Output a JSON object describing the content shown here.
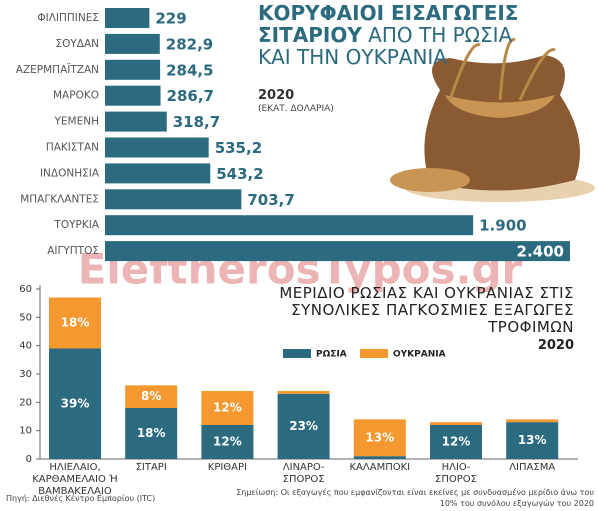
{
  "watermark": "EleftherosTypos.gr",
  "source": "Πηγή: Διεθνές Κέντρο Εμπορίου (ITC)",
  "note": "Σημείωση: Οι εξαγωγές που εμφανίζονται είναι εκείνες με συνδυασμένο μερίδιο άνω του 10% του συνόλου εξαγωγών του 2020",
  "chart_data": [
    {
      "type": "bar",
      "orientation": "horizontal",
      "title": [
        "ΚΟΡΥΦΑΙΟΙ ΕΙΣΑΓΩΓΕΙΣ ΣΙΤΑΡΙΟΥ",
        "ΑΠΟ ΤΗ ΡΩΣΙΑ ΚΑΙ ΤΗΝ ΟΥΚΡΑΝΙΑ"
      ],
      "subtitle": "2020",
      "unit": "(ΕΚΑΤ. ΔΟΛΑΡΙΑ)",
      "categories": [
        "ΦΙΛΙΠΠΙΝΕΣ",
        "ΣΟΥΔΑΝ",
        "ΑΖΕΡΜΠΑΪΤΖΑΝ",
        "ΜΑΡΟΚΟ",
        "ΥΕΜΕΝΗ",
        "ΠΑΚΙΣΤΑΝ",
        "ΙΝΔΟΝΗΣΙΑ",
        "ΜΠΑΓΚΛΑΝΤΕΣ",
        "ΤΟΥΡΚΙΑ",
        "ΑΙΓΥΠΤΟΣ"
      ],
      "values": [
        229,
        282.9,
        284.5,
        286.7,
        318.7,
        535.2,
        543.2,
        703.7,
        1900,
        2400
      ],
      "value_labels": [
        "229",
        "282,9",
        "284,5",
        "286,7",
        "318,7",
        "535,2",
        "543,2",
        "703,7",
        "1.900",
        "2.400"
      ],
      "color": "#2c6a80"
    },
    {
      "type": "stacked_bar",
      "title": "ΜΕΡΙΔΙΟ ΡΩΣΙΑΣ ΚΑΙ ΟΥΚΡΑΝΙΑΣ ΣΤΙΣ ΣΥΝΟΛΙΚΕΣ ΠΑΓΚΟΣΜΙΕΣ ΕΞΑΓΩΓΕΣ ΤΡΟΦΙΜΩΝ",
      "subtitle": "2020",
      "categories": [
        "ΗΛΙΕΛΑΙΟ, ΚΑΡΘΑΜΕΛΑΙΟ Ή ΒΑΜΒΑΚΕΛΑΙΟ",
        "ΣΙΤΑΡΙ",
        "ΚΡΙΘΑΡΙ",
        "ΛΙΝΑΡΟ-ΣΠΟΡΟΣ",
        "ΚΑΛΑΜΠΟΚΙ",
        "ΗΛΙΟ-ΣΠΟΡΟΣ",
        "ΛΙΠΑΣΜΑ"
      ],
      "series": [
        {
          "name": "ΡΩΣΙΑ",
          "color": "#2c6a80",
          "values": [
            39,
            18,
            12,
            23,
            1,
            12,
            13
          ],
          "value_labels": [
            "39%",
            "18%",
            "12%",
            "23%",
            null,
            "12%",
            "13%"
          ]
        },
        {
          "name": "ΟΥΚΡΑΝΙΑ",
          "color": "#f4982f",
          "values": [
            18,
            8,
            12,
            1,
            13,
            1,
            1
          ],
          "value_labels": [
            "18%",
            "8%",
            "12%",
            null,
            "13%",
            null,
            null
          ]
        }
      ],
      "ylim": [
        0,
        60
      ],
      "yticks": [
        0,
        10,
        20,
        30,
        40,
        50,
        60
      ],
      "legend": "top-right"
    }
  ]
}
